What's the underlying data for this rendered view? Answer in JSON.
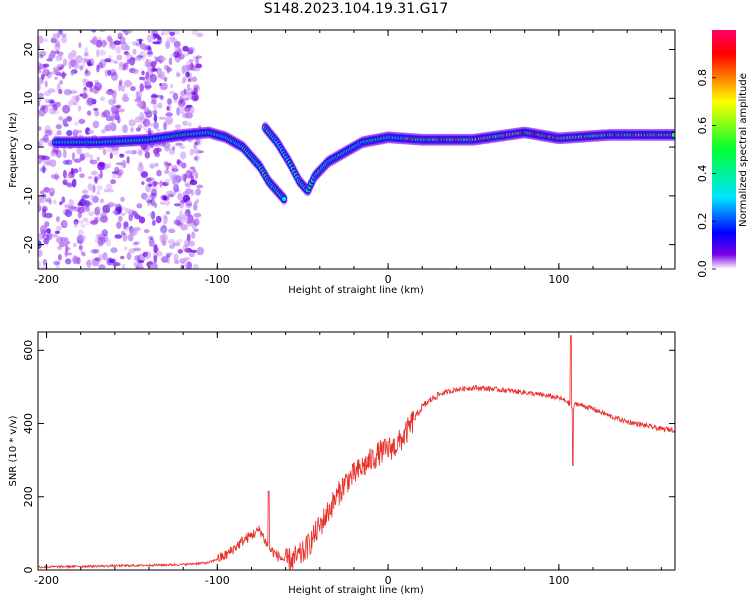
{
  "title": "S148.2023.104.19.31.G17",
  "chart_data": [
    {
      "type": "heatmap",
      "xlabel": "Height of straight line (km)",
      "ylabel": "Frequency (Hz)",
      "xlim": [
        -205,
        168
      ],
      "ylim": [
        -25,
        24
      ],
      "xticks": [
        -200,
        -100,
        0,
        100
      ],
      "yticks": [
        -20,
        -10,
        0,
        10,
        20
      ],
      "colorbar": {
        "label": "Normalized spectral amplitude",
        "range": [
          0,
          1
        ],
        "ticks": [
          "0.0",
          "0.2",
          "0.4",
          "0.6",
          "0.8"
        ],
        "colors": [
          "#ffffff",
          "#7a00e6",
          "#0000ff",
          "#00e6ff",
          "#00ff33",
          "#ffff00",
          "#ff8000",
          "#ff0000",
          "#ff0066"
        ]
      },
      "ridge": {
        "description_points": [
          {
            "x": -195,
            "y": 1
          },
          {
            "x": -170,
            "y": 1
          },
          {
            "x": -140,
            "y": 1.5
          },
          {
            "x": -120,
            "y": 2.5
          },
          {
            "x": -105,
            "y": 3
          },
          {
            "x": -95,
            "y": 2
          },
          {
            "x": -85,
            "y": 0
          },
          {
            "x": -75,
            "y": -4
          },
          {
            "x": -70,
            "y": -7
          },
          {
            "x": -65,
            "y": -9
          },
          {
            "x": -60,
            "y": -11
          }
        ],
        "branch_points": [
          {
            "x": -72,
            "y": 4
          },
          {
            "x": -65,
            "y": 1
          },
          {
            "x": -58,
            "y": -3
          },
          {
            "x": -52,
            "y": -7
          },
          {
            "x": -47,
            "y": -9
          },
          {
            "x": -43,
            "y": -6
          },
          {
            "x": -35,
            "y": -3
          },
          {
            "x": -25,
            "y": -1
          },
          {
            "x": -15,
            "y": 1
          },
          {
            "x": 0,
            "y": 2
          },
          {
            "x": 20,
            "y": 1.5
          },
          {
            "x": 50,
            "y": 1.5
          },
          {
            "x": 80,
            "y": 3
          },
          {
            "x": 100,
            "y": 1.8
          },
          {
            "x": 130,
            "y": 2.5
          },
          {
            "x": 168,
            "y": 2.5
          }
        ]
      }
    },
    {
      "type": "line",
      "xlabel": "Height of straight line (km)",
      "ylabel": "SNR (10 * v/v)",
      "xlim": [
        -205,
        168
      ],
      "ylim": [
        0,
        650
      ],
      "xticks": [
        -200,
        -100,
        0,
        100
      ],
      "yticks": [
        0,
        200,
        400,
        600
      ],
      "color": "#e8302a",
      "x": [
        -205,
        -180,
        -150,
        -120,
        -105,
        -95,
        -85,
        -75,
        -70,
        -65,
        -60,
        -55,
        -50,
        -45,
        -40,
        -35,
        -30,
        -25,
        -20,
        -15,
        -10,
        -5,
        0,
        5,
        10,
        15,
        20,
        25,
        30,
        40,
        50,
        60,
        70,
        80,
        90,
        100,
        105,
        108,
        110,
        120,
        130,
        140,
        150,
        160,
        168
      ],
      "y": [
        8,
        10,
        12,
        15,
        20,
        40,
        80,
        110,
        60,
        40,
        25,
        30,
        45,
        80,
        120,
        160,
        200,
        240,
        260,
        280,
        300,
        320,
        330,
        340,
        370,
        410,
        445,
        465,
        480,
        493,
        498,
        495,
        490,
        485,
        478,
        470,
        460,
        440,
        455,
        440,
        420,
        405,
        395,
        385,
        383
      ]
    }
  ]
}
